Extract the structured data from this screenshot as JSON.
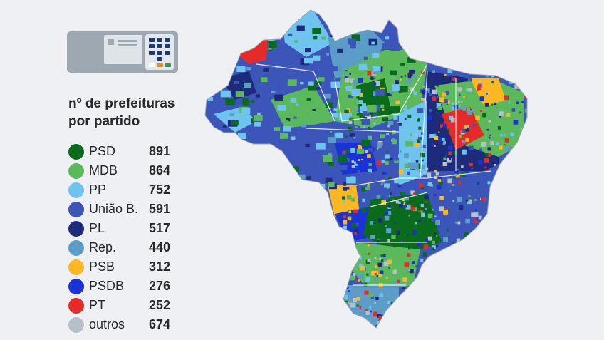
{
  "legend": {
    "title": "nº de prefeituras por partido",
    "items": [
      {
        "party": "PSD",
        "count": "891",
        "color": "#0a6b1c"
      },
      {
        "party": "MDB",
        "count": "864",
        "color": "#5bb85b"
      },
      {
        "party": "PP",
        "count": "752",
        "color": "#6fc3ef"
      },
      {
        "party": "União B.",
        "count": "591",
        "color": "#3b55b8"
      },
      {
        "party": "PL",
        "count": "517",
        "color": "#1e2a7a"
      },
      {
        "party": "Rep.",
        "count": "440",
        "color": "#5b9cc9"
      },
      {
        "party": "PSB",
        "count": "312",
        "color": "#fbb822"
      },
      {
        "party": "PSDB",
        "count": "276",
        "color": "#1b33d6"
      },
      {
        "party": "PT",
        "count": "252",
        "color": "#e52a2a"
      },
      {
        "party": "outros",
        "count": "674",
        "color": "#b6c0c8"
      }
    ]
  },
  "icon": "ballot-machine-icon",
  "map": {
    "subject": "brazil-municipalities-map"
  }
}
